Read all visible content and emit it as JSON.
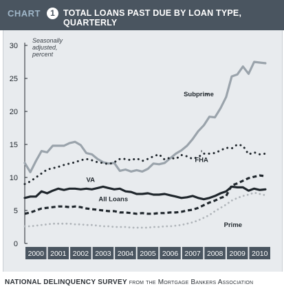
{
  "header": {
    "label": "CHART",
    "number": "1",
    "title": "TOTAL LOANS PAST DUE BY LOAN TYPE, QUARTERLY"
  },
  "footer": {
    "source_main": "NATIONAL DELINQUENCY SURVEY",
    "source_rest": "from the Mortgage Bankers Association"
  },
  "colors": {
    "header_bg": "#4a5560",
    "panel_bg": "#e8ebee",
    "subprime": "#9aa3ab",
    "va": "#1f262c",
    "fha": "#1f262c",
    "all_loans": "#1f262c",
    "prime": "#b0b5ba"
  },
  "chart_data": {
    "type": "line",
    "ylabel": "Seasonally adjusted, percent",
    "ylim": [
      0,
      30
    ],
    "yticks": [
      0,
      5,
      10,
      15,
      20,
      25,
      30
    ],
    "xlim": [
      2000,
      2011
    ],
    "xticks": [
      "2000",
      "2001",
      "2002",
      "2003",
      "2004",
      "2005",
      "2006",
      "2007",
      "2008",
      "2009",
      "2010"
    ],
    "grid": false,
    "series": [
      {
        "name": "Subprime",
        "style": "solid-thick",
        "x": [
          2000.0,
          2000.25,
          2000.5,
          2000.75,
          2001.0,
          2001.25,
          2001.5,
          2001.75,
          2002.0,
          2002.25,
          2002.5,
          2002.75,
          2003.0,
          2003.25,
          2003.5,
          2003.75,
          2004.0,
          2004.25,
          2004.5,
          2004.75,
          2005.0,
          2005.25,
          2005.5,
          2005.75,
          2006.0,
          2006.25,
          2006.5,
          2006.75,
          2007.0,
          2007.25,
          2007.5,
          2007.75,
          2008.0,
          2008.25,
          2008.5,
          2008.75,
          2009.0,
          2009.25,
          2009.5,
          2009.75,
          2010.0,
          2010.25,
          2010.5,
          2010.75
        ],
        "y": [
          12.2,
          10.8,
          12.5,
          14.0,
          13.8,
          14.8,
          14.8,
          14.8,
          15.2,
          15.4,
          14.9,
          13.7,
          13.5,
          12.8,
          12.3,
          12.1,
          12.2,
          11.0,
          11.2,
          10.9,
          11.1,
          10.9,
          11.3,
          12.1,
          12.0,
          12.2,
          12.9,
          13.6,
          14.1,
          14.8,
          15.8,
          17.0,
          17.9,
          19.2,
          19.1,
          20.5,
          22.2,
          25.3,
          25.6,
          26.8,
          25.7,
          27.5,
          27.4,
          27.3
        ]
      },
      {
        "name": "FHA",
        "style": "dotted-thick",
        "x": [
          2000.0,
          2000.25,
          2000.5,
          2000.75,
          2001.0,
          2001.25,
          2001.5,
          2001.75,
          2002.0,
          2002.25,
          2002.5,
          2002.75,
          2003.0,
          2003.25,
          2003.5,
          2003.75,
          2004.0,
          2004.25,
          2004.5,
          2004.75,
          2005.0,
          2005.25,
          2005.5,
          2005.75,
          2006.0,
          2006.25,
          2006.5,
          2006.75,
          2007.0,
          2007.25,
          2007.5,
          2007.75,
          2008.0,
          2008.25,
          2008.5,
          2008.75,
          2009.0,
          2009.25,
          2009.5,
          2009.75,
          2010.0,
          2010.25,
          2010.5,
          2010.75
        ],
        "y": [
          9.0,
          9.4,
          10.0,
          10.6,
          11.2,
          11.4,
          11.6,
          11.9,
          12.1,
          12.3,
          12.6,
          12.8,
          12.6,
          12.3,
          12.2,
          12.0,
          12.3,
          12.8,
          12.8,
          12.6,
          12.9,
          12.5,
          12.8,
          13.2,
          13.5,
          12.7,
          13.0,
          12.8,
          13.4,
          13.2,
          12.8,
          13.1,
          13.6,
          13.6,
          13.7,
          14.1,
          14.5,
          14.4,
          15.0,
          14.8,
          13.5,
          13.8,
          13.5,
          13.6
        ]
      },
      {
        "name": "VA",
        "style": "solid-thick",
        "x": [
          2000.0,
          2000.25,
          2000.5,
          2000.75,
          2001.0,
          2001.25,
          2001.5,
          2001.75,
          2002.0,
          2002.25,
          2002.5,
          2002.75,
          2003.0,
          2003.25,
          2003.5,
          2003.75,
          2004.0,
          2004.25,
          2004.5,
          2004.75,
          2005.0,
          2005.25,
          2005.5,
          2005.75,
          2006.0,
          2006.25,
          2006.5,
          2006.75,
          2007.0,
          2007.25,
          2007.5,
          2007.75,
          2008.0,
          2008.25,
          2008.5,
          2008.75,
          2009.0,
          2009.25,
          2009.5,
          2009.75,
          2010.0,
          2010.25,
          2010.5,
          2010.75
        ],
        "y": [
          6.9,
          7.1,
          7.1,
          7.9,
          7.6,
          8.0,
          8.3,
          8.1,
          8.3,
          8.3,
          8.2,
          8.3,
          8.2,
          8.4,
          8.6,
          8.4,
          8.2,
          8.3,
          7.9,
          7.8,
          7.5,
          7.5,
          7.6,
          7.4,
          7.4,
          7.5,
          7.3,
          7.1,
          6.9,
          7.0,
          7.2,
          6.9,
          6.7,
          6.9,
          7.2,
          7.6,
          7.9,
          8.6,
          8.5,
          8.5,
          8.0,
          8.3,
          8.1,
          8.2
        ]
      },
      {
        "name": "All Loans",
        "style": "dashed-thick",
        "x": [
          2000.0,
          2000.25,
          2000.5,
          2000.75,
          2001.0,
          2001.25,
          2001.5,
          2001.75,
          2002.0,
          2002.25,
          2002.5,
          2002.75,
          2003.0,
          2003.25,
          2003.5,
          2003.75,
          2004.0,
          2004.25,
          2004.5,
          2004.75,
          2005.0,
          2005.25,
          2005.5,
          2005.75,
          2006.0,
          2006.25,
          2006.5,
          2006.75,
          2007.0,
          2007.25,
          2007.5,
          2007.75,
          2008.0,
          2008.25,
          2008.5,
          2008.75,
          2009.0,
          2009.25,
          2009.5,
          2009.75,
          2010.0,
          2010.25,
          2010.5,
          2010.75
        ],
        "y": [
          4.5,
          4.7,
          5.0,
          5.3,
          5.4,
          5.5,
          5.6,
          5.6,
          5.5,
          5.6,
          5.5,
          5.3,
          5.2,
          5.1,
          5.0,
          4.9,
          4.9,
          4.7,
          4.7,
          4.6,
          4.5,
          4.6,
          4.5,
          4.5,
          4.6,
          4.6,
          4.7,
          4.7,
          4.8,
          5.0,
          5.1,
          5.4,
          5.8,
          6.2,
          6.5,
          6.9,
          7.2,
          8.8,
          9.1,
          9.5,
          9.9,
          10.1,
          10.3,
          10.2
        ]
      },
      {
        "name": "Prime",
        "style": "dotted-light",
        "x": [
          2000.0,
          2000.25,
          2000.5,
          2000.75,
          2001.0,
          2001.25,
          2001.5,
          2001.75,
          2002.0,
          2002.25,
          2002.5,
          2002.75,
          2003.0,
          2003.25,
          2003.5,
          2003.75,
          2004.0,
          2004.25,
          2004.5,
          2004.75,
          2005.0,
          2005.25,
          2005.5,
          2005.75,
          2006.0,
          2006.25,
          2006.5,
          2006.75,
          2007.0,
          2007.25,
          2007.5,
          2007.75,
          2008.0,
          2008.25,
          2008.5,
          2008.75,
          2009.0,
          2009.25,
          2009.5,
          2009.75,
          2010.0,
          2010.25,
          2010.5,
          2010.75
        ],
        "y": [
          2.6,
          2.6,
          2.7,
          2.8,
          2.9,
          3.0,
          3.0,
          3.0,
          3.0,
          2.9,
          2.9,
          2.8,
          2.8,
          2.7,
          2.6,
          2.6,
          2.5,
          2.5,
          2.5,
          2.4,
          2.4,
          2.4,
          2.4,
          2.5,
          2.5,
          2.6,
          2.6,
          2.7,
          2.8,
          3.0,
          3.2,
          3.5,
          3.9,
          4.3,
          4.9,
          5.4,
          5.9,
          6.5,
          6.9,
          7.2,
          7.4,
          7.7,
          7.5,
          7.3
        ]
      }
    ],
    "annotations": [
      {
        "text": "Subprime",
        "x": 2007.1,
        "y": 22.3,
        "leader_to": [
          2008.1,
          22.3
        ]
      },
      {
        "text": "FHA",
        "x": 2007.9,
        "y": 13.2,
        "leader_to": [
          2007.9,
          13.5
        ]
      },
      {
        "text": "VA",
        "x": 2002.75,
        "y": 9.3
      },
      {
        "text": "All Loans",
        "x": 2003.3,
        "y": 6.4
      },
      {
        "text": "Prime",
        "x": 2008.9,
        "y": 2.5
      }
    ]
  }
}
